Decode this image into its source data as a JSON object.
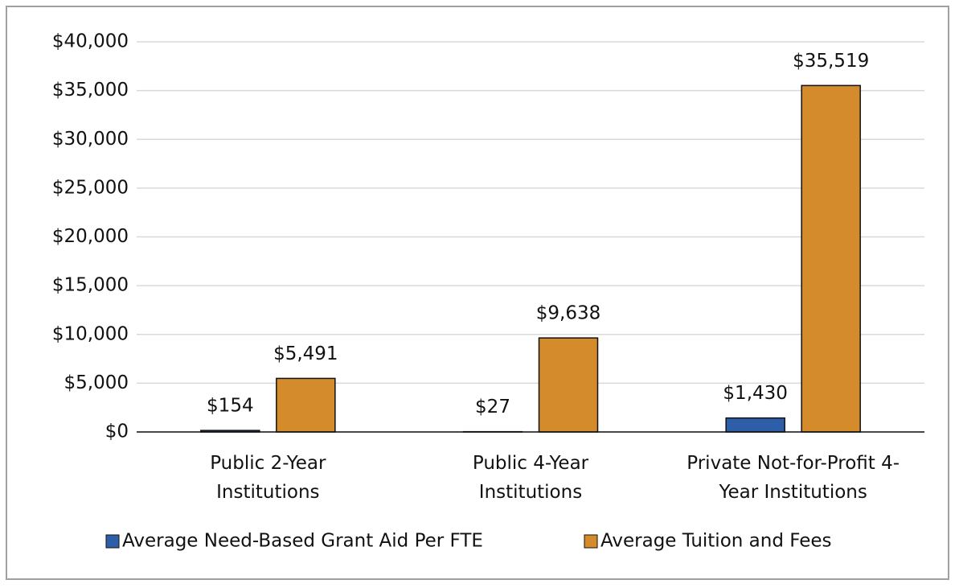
{
  "chart_data": {
    "type": "bar",
    "categories": [
      "Public 2-Year\nInstitutions",
      "Public 4-Year\nInstitutions",
      "Private Not-for-Profit 4-\nYear Institutions"
    ],
    "series": [
      {
        "name": "Average Need-Based Grant Aid Per FTE",
        "color": "#2f5ea8",
        "values": [
          154,
          27,
          1430
        ],
        "value_labels": [
          "$154",
          "$27",
          "$1,430"
        ]
      },
      {
        "name": "Average Tuition and Fees",
        "color": "#d48b2c",
        "values": [
          5491,
          9638,
          35519
        ],
        "value_labels": [
          "$5,491",
          "$9,638",
          "$35,519"
        ]
      }
    ],
    "ylim": [
      0,
      40000
    ],
    "yticks": [
      {
        "value": 0,
        "label": "$0"
      },
      {
        "value": 5000,
        "label": "$5,000"
      },
      {
        "value": 10000,
        "label": "$10,000"
      },
      {
        "value": 15000,
        "label": "$15,000"
      },
      {
        "value": 20000,
        "label": "$20,000"
      },
      {
        "value": 25000,
        "label": "$25,000"
      },
      {
        "value": 30000,
        "label": "$30,000"
      },
      {
        "value": 35000,
        "label": "$35,000"
      },
      {
        "value": 40000,
        "label": "$40,000"
      }
    ],
    "grid": true,
    "legend": "bottom"
  }
}
